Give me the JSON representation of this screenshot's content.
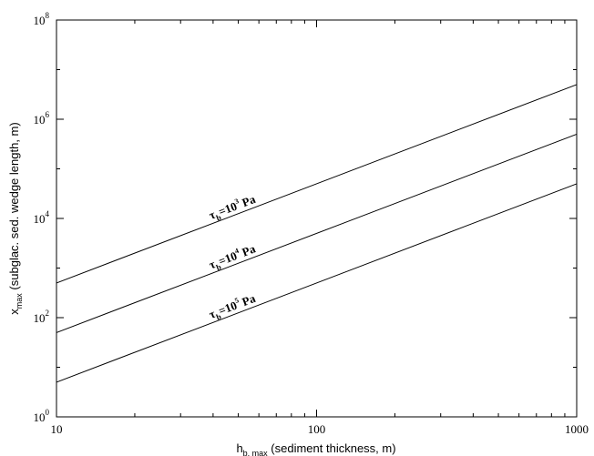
{
  "chart_data": {
    "type": "line",
    "title": "",
    "xlabel": {
      "main": "h",
      "sub": "b, max",
      "suffix": " (sediment thickness, m)"
    },
    "ylabel": {
      "main": "x",
      "sub": "max",
      "suffix": " (subglac. sed. wedge length, m)"
    },
    "xscale": "log",
    "yscale": "log",
    "xlim": [
      10,
      1000
    ],
    "ylim": [
      1,
      100000000
    ],
    "xticks": [
      {
        "value": 10,
        "label": "10"
      },
      {
        "value": 100,
        "label": "100"
      },
      {
        "value": 1000,
        "label": "1000"
      }
    ],
    "yticks": [
      {
        "value": 1,
        "base": "10",
        "exp": "0"
      },
      {
        "value": 100,
        "base": "10",
        "exp": "2"
      },
      {
        "value": 10000,
        "base": "10",
        "exp": "4"
      },
      {
        "value": 1000000,
        "base": "10",
        "exp": "6"
      },
      {
        "value": 100000000,
        "base": "10",
        "exp": "8"
      }
    ],
    "grid": false,
    "series": [
      {
        "label": {
          "symbol": "τ",
          "sub": "b",
          "eq": "=10",
          "exp": "3",
          "unit": " Pa"
        },
        "x": [
          10,
          1000
        ],
        "y": [
          500,
          5000000
        ]
      },
      {
        "label": {
          "symbol": "τ",
          "sub": "b",
          "eq": "=10",
          "exp": "4",
          "unit": " Pa"
        },
        "x": [
          10,
          1000
        ],
        "y": [
          50,
          500000
        ]
      },
      {
        "label": {
          "symbol": "τ",
          "sub": "b",
          "eq": "=10",
          "exp": "5",
          "unit": " Pa"
        },
        "x": [
          10,
          1000
        ],
        "y": [
          5,
          50000
        ]
      }
    ]
  }
}
